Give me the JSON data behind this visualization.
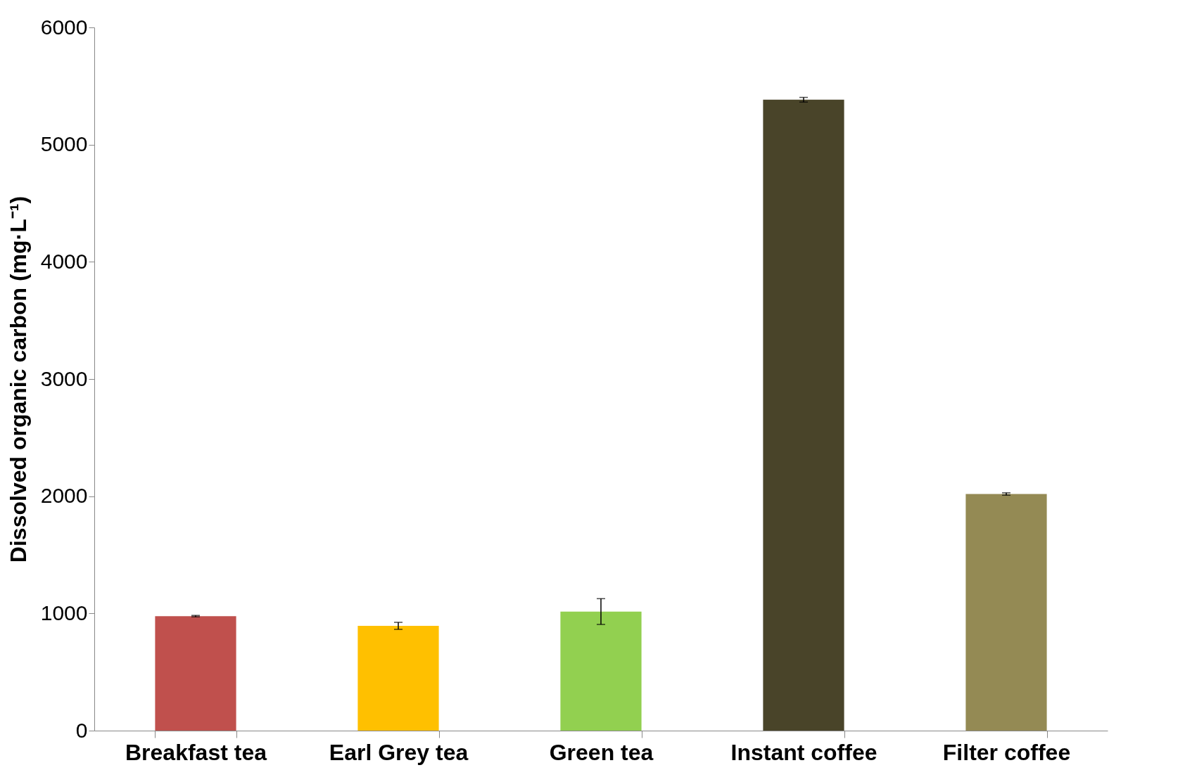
{
  "chart_data": {
    "type": "bar",
    "ylabel": "Dissolved organic carbon (mg·L⁻¹)",
    "categories": [
      "Breakfast tea",
      "Earl Grey tea",
      "Green tea",
      "Instant coffee",
      "Filter coffee"
    ],
    "values": [
      977,
      894,
      1016,
      5383,
      2019
    ],
    "colors": [
      "#c0504d",
      "#ffc000",
      "#92d050",
      "#494429",
      "#948a54"
    ],
    "errors": [
      6,
      30,
      110,
      20,
      10
    ],
    "ylim": [
      0,
      6000
    ],
    "yticks": [
      0,
      1000,
      2000,
      3000,
      4000,
      5000,
      6000
    ],
    "grid": false
  }
}
